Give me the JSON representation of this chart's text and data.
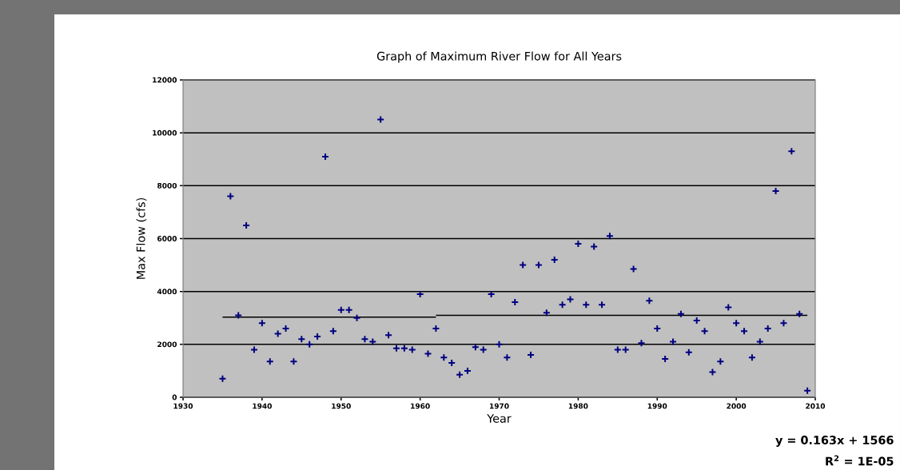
{
  "chart_data": {
    "type": "scatter",
    "title": "Graph of Maximum River Flow for All Years",
    "xlabel": "Year",
    "ylabel": "Max Flow (cfs)",
    "annotations": [
      "y = 0.163x + 1566",
      "R$^{2}$ = 1E-05"
    ],
    "xlim": [
      1930,
      2010
    ],
    "ylim": [
      0,
      12000
    ],
    "xticks": [
      1930,
      1940,
      1950,
      1960,
      1970,
      1980,
      1990,
      2000,
      2010
    ],
    "yticks": [
      0,
      2000,
      4000,
      6000,
      8000,
      10000,
      12000
    ],
    "grid": "y",
    "series": [
      {
        "color": "#000080",
        "marker": "cross",
        "x": [
          1935,
          1936,
          1937,
          1938,
          1939,
          1940,
          1941,
          1942,
          1943,
          1944,
          1945,
          1946,
          1947,
          1948,
          1949,
          1950,
          1951,
          1952,
          1953,
          1954,
          1955,
          1956,
          1957,
          1958,
          1959,
          1960,
          1961,
          1962,
          1963,
          1964,
          1965,
          1966,
          1967,
          1968,
          1969,
          1970,
          1971,
          1972,
          1973,
          1974,
          1975,
          1976,
          1977,
          1978,
          1979,
          1980,
          1981,
          1982,
          1983,
          1984,
          1985,
          1986,
          1987,
          1988,
          1989,
          1990,
          1991,
          1992,
          1993,
          1994,
          1995,
          1996,
          1997,
          1998,
          1999,
          2000,
          2001,
          2002,
          2003,
          2004,
          2005,
          2006,
          2007,
          2008,
          2009
        ],
        "values": [
          700,
          7600,
          3100,
          6500,
          1800,
          2800,
          1350,
          2400,
          2600,
          1350,
          2200,
          2000,
          2300,
          9100,
          2500,
          3300,
          3300,
          3000,
          2200,
          2100,
          10500,
          2350,
          1850,
          1850,
          1800,
          3900,
          1650,
          2600,
          1500,
          1300,
          850,
          1000,
          1900,
          1800,
          3900,
          2000,
          1500,
          3600,
          5000,
          1600,
          5000,
          3200,
          5200,
          3500,
          3700,
          5800,
          3500,
          5700,
          3500,
          6100,
          1800,
          1800,
          4850,
          2050,
          3650,
          2600,
          1450,
          2100,
          3150,
          1700,
          2900,
          2500,
          950,
          1350,
          3400,
          2800,
          2500,
          1500,
          2100,
          2600,
          7800,
          2800,
          9300,
          3150,
          250
        ]
      },
      {
        "type": "line",
        "color": "#000000",
        "marker": "none",
        "x": [
          1935,
          1962
        ],
        "values": [
          3030,
          3030
        ]
      },
      {
        "type": "line",
        "color": "#000000",
        "marker": "none",
        "x": [
          1962,
          2009
        ],
        "values": [
          3100,
          3100
        ]
      }
    ]
  }
}
